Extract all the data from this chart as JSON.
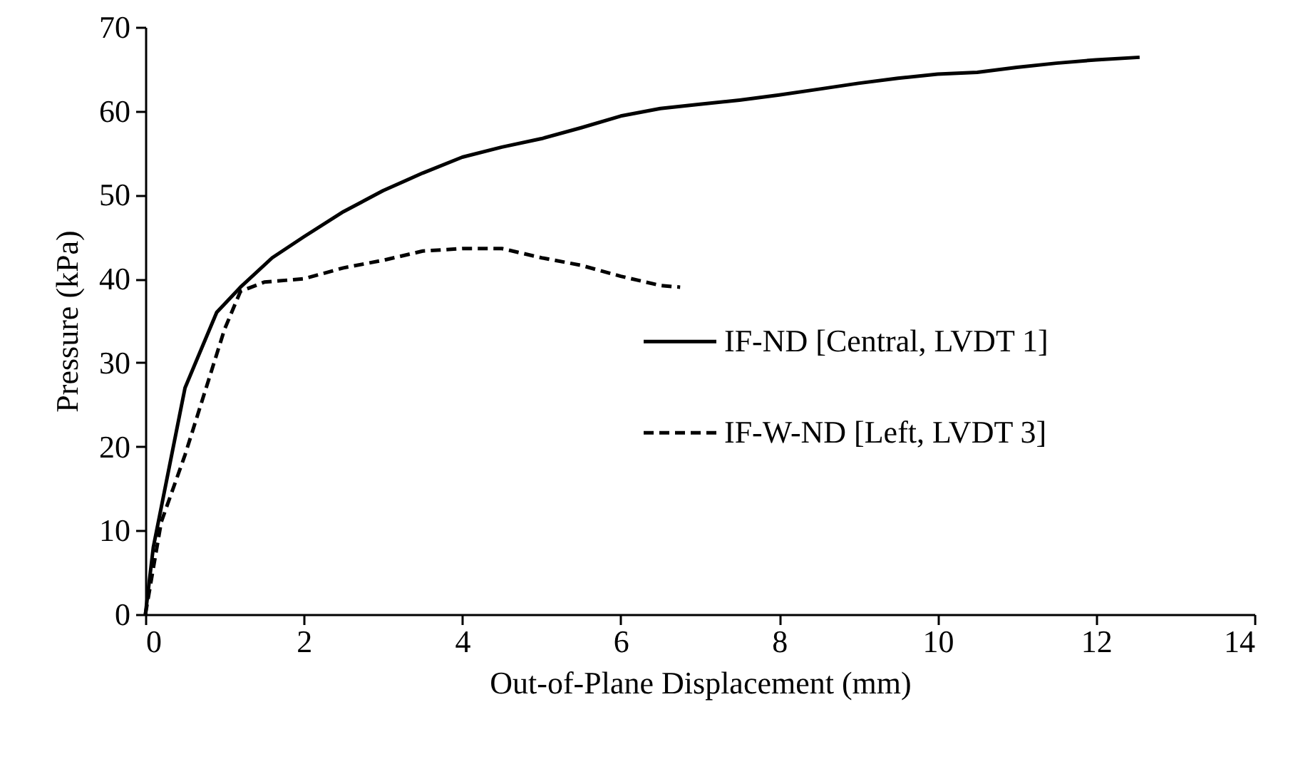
{
  "chart_data": {
    "type": "line",
    "xlabel": "Out-of-Plane Displacement (mm)",
    "ylabel": "Pressure (kPa)",
    "xlim": [
      0,
      14
    ],
    "xticks": [
      0,
      2,
      4,
      6,
      8,
      10,
      12,
      14
    ],
    "ylim": [
      0,
      70
    ],
    "yticks": [
      0,
      10,
      20,
      30,
      40,
      50,
      60,
      70
    ],
    "grid": false,
    "legend": "right",
    "marker": "none",
    "series": [
      {
        "name": "IF-ND [Central, LVDT 1]",
        "color": "#000000",
        "line_style": "solid",
        "x": [
          0,
          0.1,
          0.5,
          0.9,
          1.2,
          1.6,
          2,
          2.5,
          3,
          3.5,
          4,
          4.5,
          5,
          5.5,
          6,
          6.5,
          7,
          7.5,
          8,
          8.5,
          9,
          9.5,
          10,
          10.5,
          11,
          11.5,
          12,
          12.55
        ],
        "values": [
          0,
          8,
          27,
          36,
          39,
          42.5,
          45,
          48,
          50.5,
          52.6,
          54.5,
          55.7,
          56.7,
          58,
          59.4,
          60.3,
          60.8,
          61.3,
          61.9,
          62.6,
          63.3,
          63.9,
          64.4,
          64.6,
          65.2,
          65.7,
          66.1,
          66.4
        ]
      },
      {
        "name": "IF-W-ND [Left, LVDT 3]",
        "color": "#000000",
        "line_style": "dashed",
        "x": [
          0,
          0.2,
          0.5,
          0.8,
          1.0,
          1.2,
          1.5,
          2,
          2.5,
          3,
          3.5,
          4,
          4.5,
          5,
          5.5,
          6,
          6.5,
          6.75
        ],
        "values": [
          0,
          11,
          19,
          28,
          34,
          38.5,
          39.6,
          40,
          41.3,
          42.2,
          43.3,
          43.6,
          43.6,
          42.5,
          41.6,
          40.3,
          39.2,
          39
        ]
      }
    ]
  }
}
